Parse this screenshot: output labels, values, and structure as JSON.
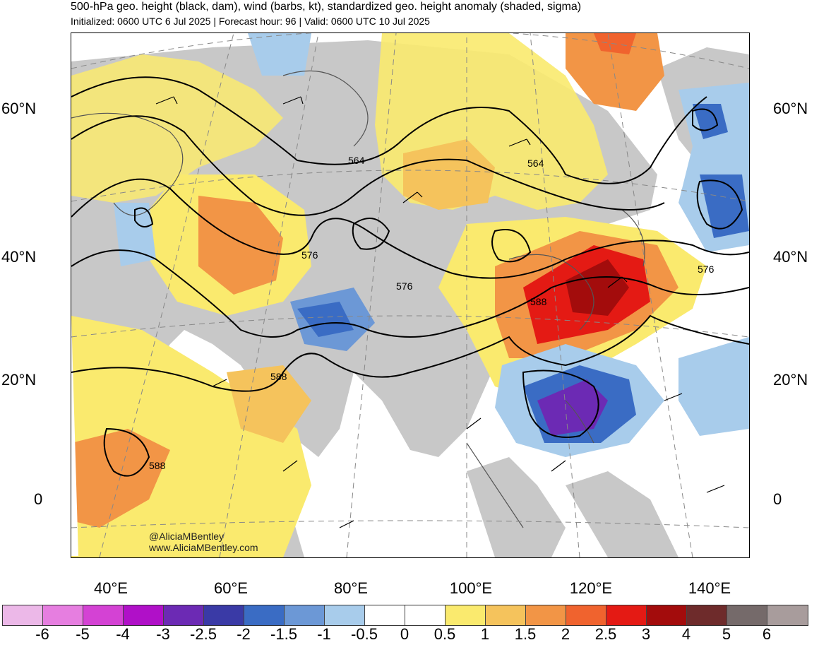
{
  "header": {
    "title": "500-hPa geo. height (black, dam), wind (barbs, kt), standardized geo. height anomaly (shaded, sigma)",
    "subtitle": "Initialized: 0600 UTC 6 Jul 2025 | Forecast hour: 96 | Valid: 0600 UTC 10 Jul 2025"
  },
  "axes": {
    "lat_left": [
      "60°N",
      "40°N",
      "20°N",
      "0"
    ],
    "lat_right": [
      "60°N",
      "40°N",
      "20°N",
      "0"
    ],
    "lon_bottom": [
      "40°E",
      "60°E",
      "80°E",
      "100°E",
      "120°E",
      "140°E"
    ]
  },
  "contour_labels": [
    "564",
    "564",
    "576",
    "576",
    "576",
    "588",
    "588",
    "588"
  ],
  "credit": {
    "handle": "@AliciaMBentley",
    "site": "www.AliciaMBentley.com"
  },
  "colorbar": {
    "ticks": [
      "-6",
      "-5",
      "-4",
      "-3",
      "-2.5",
      "-2",
      "-1.5",
      "-1",
      "-0.5",
      "0",
      "0.5",
      "1",
      "1.5",
      "2",
      "2.5",
      "3",
      "4",
      "5",
      "6"
    ],
    "colors": [
      "#ecb8e8",
      "#e67ee0",
      "#d442d4",
      "#b010c8",
      "#6c2ab4",
      "#3a3aa6",
      "#3a6cc4",
      "#6c98d6",
      "#a8cceb",
      "#ffffff",
      "#ffffff",
      "#faea6e",
      "#f5c35c",
      "#f29546",
      "#f0632e",
      "#e41a14",
      "#a30c0c",
      "#6e2b2b",
      "#756a6a",
      "#a89c9c"
    ]
  },
  "colors": {
    "land": "#c8c8c8",
    "contour": "#000000",
    "coastline": "#555555"
  }
}
